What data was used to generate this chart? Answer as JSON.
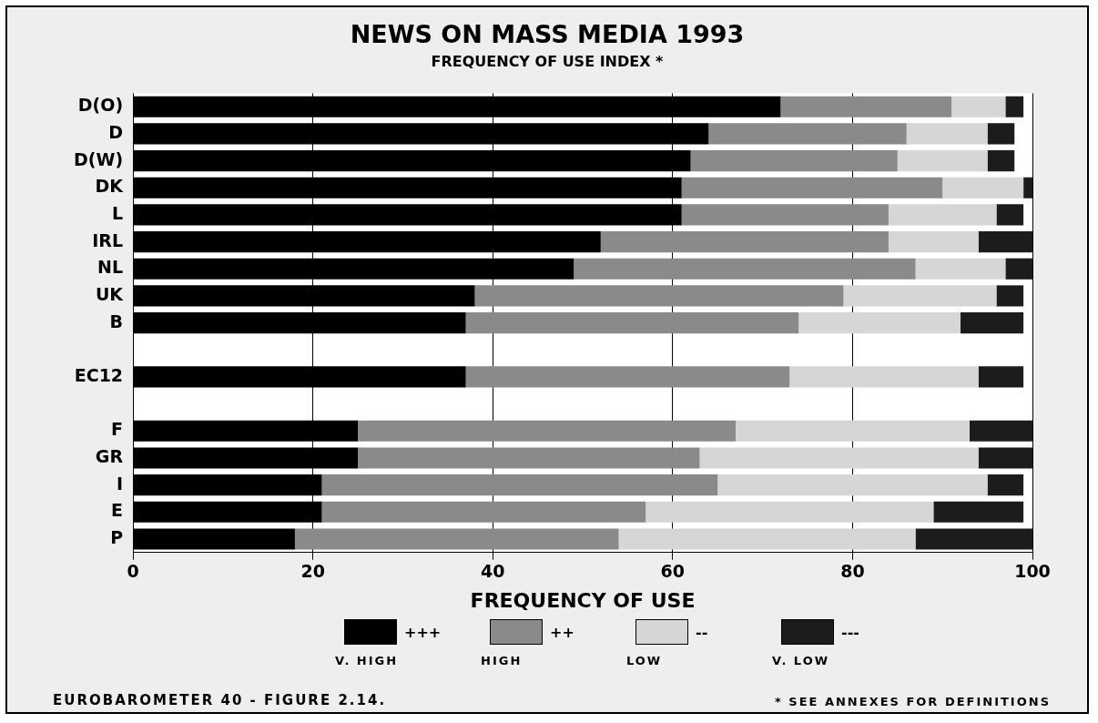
{
  "chart_data": {
    "type": "bar",
    "orientation": "horizontal",
    "stacked": true,
    "title": "NEWS ON MASS MEDIA 1993",
    "subtitle": "FREQUENCY OF USE INDEX *",
    "xlabel": "FREQUENCY OF USE",
    "categories": [
      "D(O)",
      "D",
      "D(W)",
      "DK",
      "L",
      "IRL",
      "NL",
      "UK",
      "B",
      null,
      "EC12",
      null,
      "F",
      "GR",
      "I",
      "E",
      "P"
    ],
    "series": [
      {
        "name": "+++",
        "color": "#000000",
        "values": [
          72,
          64,
          62,
          61,
          61,
          52,
          49,
          38,
          37,
          null,
          37,
          null,
          25,
          25,
          21,
          21,
          18
        ]
      },
      {
        "name": "++",
        "color": "#8a8a8a",
        "values": [
          19,
          22,
          23,
          29,
          23,
          32,
          38,
          41,
          37,
          null,
          36,
          null,
          42,
          38,
          44,
          36,
          36
        ]
      },
      {
        "name": "--",
        "color": "#d6d6d6",
        "values": [
          6,
          9,
          10,
          9,
          12,
          10,
          10,
          17,
          18,
          null,
          21,
          null,
          26,
          31,
          30,
          32,
          33
        ]
      },
      {
        "name": "---",
        "color": "#1c1c1c",
        "values": [
          2,
          3,
          3,
          1,
          3,
          6,
          3,
          3,
          7,
          null,
          5,
          null,
          7,
          6,
          4,
          10,
          13
        ]
      }
    ],
    "xlim": [
      0,
      100
    ],
    "xticks": [
      0,
      20,
      40,
      60,
      80,
      100
    ],
    "grid": "x",
    "legend": "bottom",
    "annotations": [
      "V. HIGH",
      "HIGH",
      "LOW",
      "V. LOW",
      "EUROBAROMETER 40 - FIGURE 2.14.",
      "* SEE ANNEXES FOR DEFINITIONS"
    ]
  }
}
